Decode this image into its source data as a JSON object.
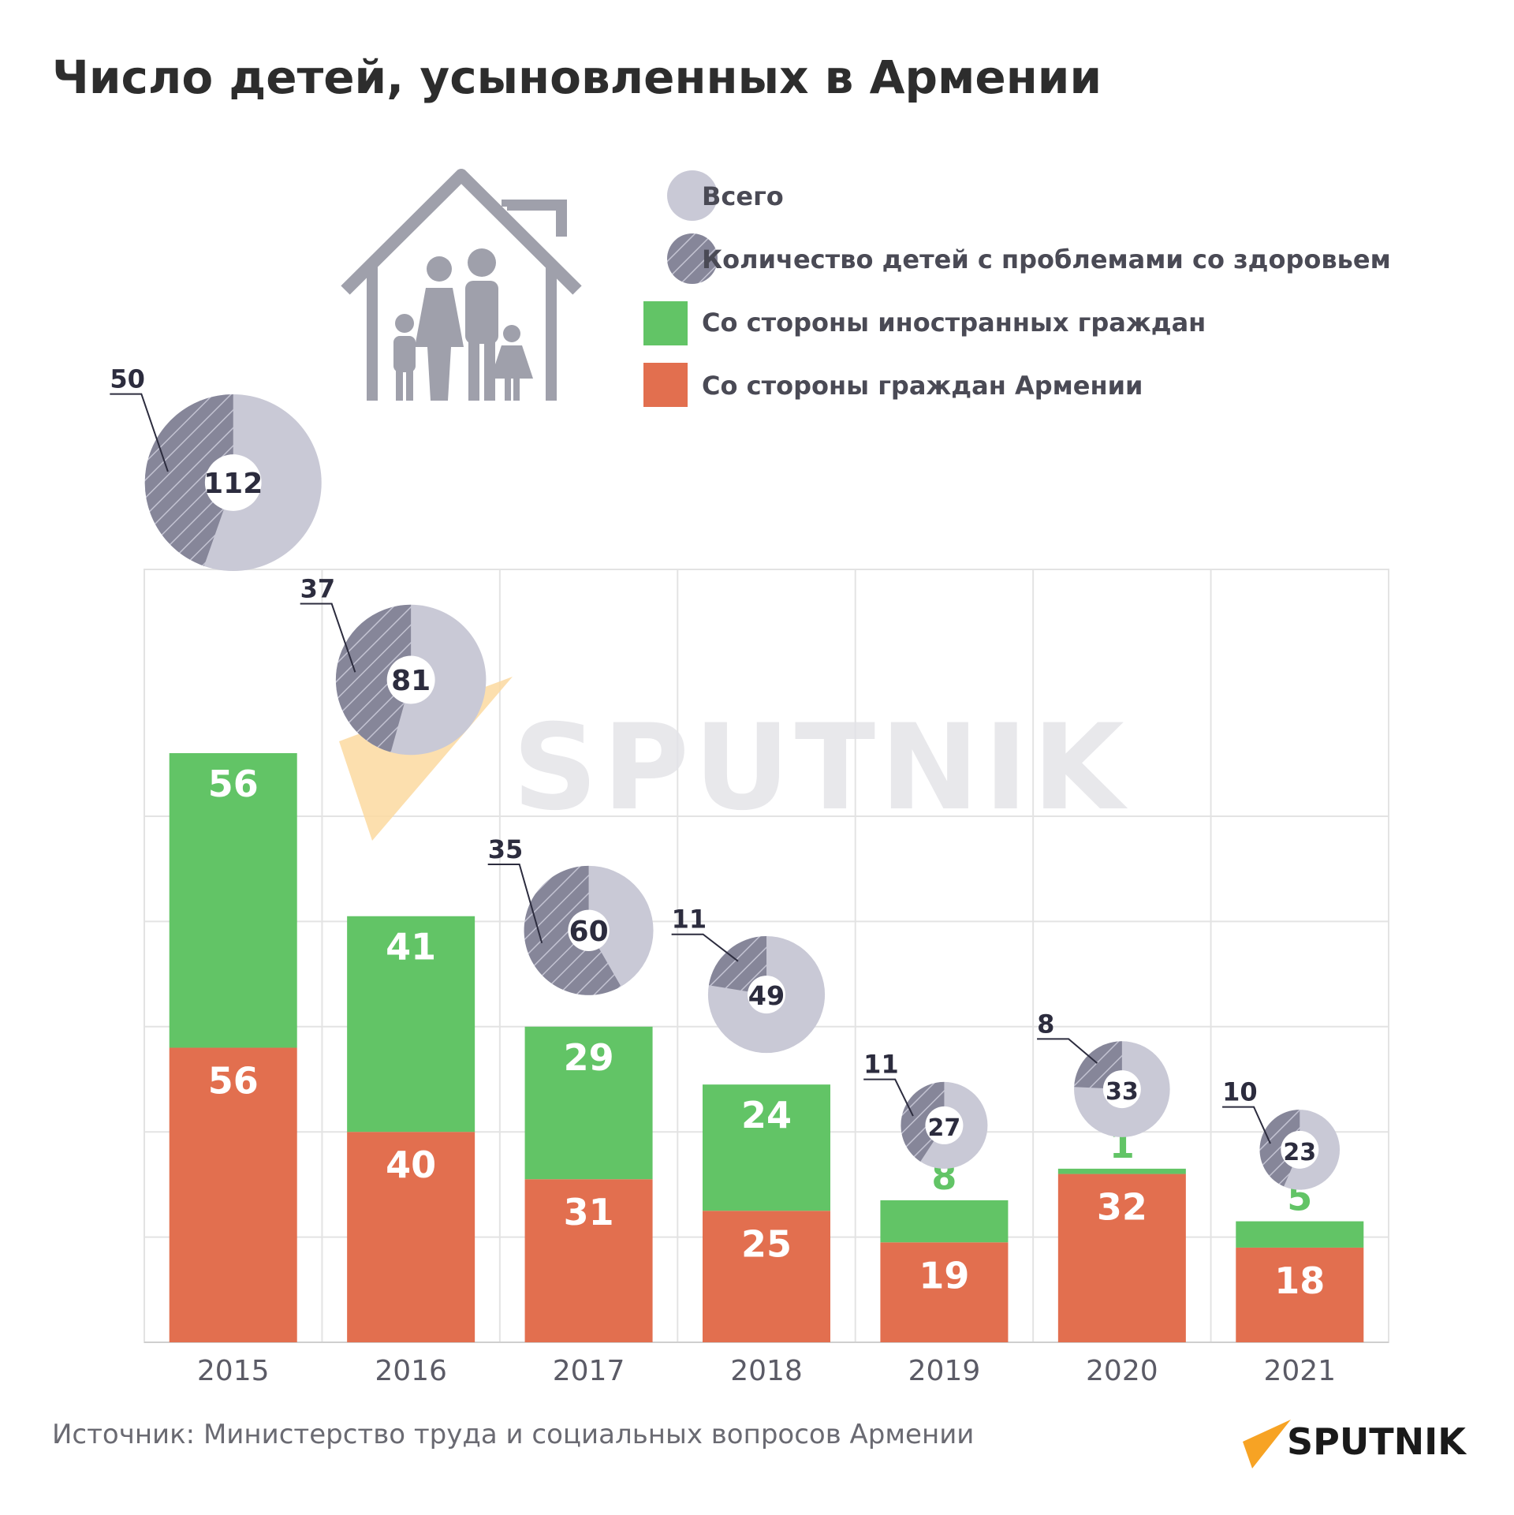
{
  "title": "Число детей, усыновленных в Армении",
  "source": "Источник: Министерство труда и социальных вопросов Армении",
  "brand": "SPUTNIK",
  "legend": [
    {
      "label": "Всего",
      "icon": "light-circle",
      "color": "#c9c9d6"
    },
    {
      "label": "Количество детей с проблемами со здоровьем",
      "icon": "hatched-circle",
      "color": "#868699"
    },
    {
      "label": "Со стороны иностранных граждан",
      "icon": "green-square",
      "color": "#62c466"
    },
    {
      "label": "Со стороны граждан Армении",
      "icon": "orange-square",
      "color": "#e26f4f"
    }
  ],
  "colors": {
    "foreign": "#62c466",
    "armenian": "#e26f4f",
    "total": "#c9c9d6",
    "health": "#868699",
    "grid": "#e3e3e3",
    "accent": "#f7a324"
  },
  "chart_data": {
    "type": "bar",
    "stacked": true,
    "title": "Число детей, усыновленных в Армении",
    "categories": [
      "2015",
      "2016",
      "2017",
      "2018",
      "2019",
      "2020",
      "2021"
    ],
    "series": [
      {
        "name": "Со стороны граждан Армении",
        "values": [
          56,
          40,
          31,
          25,
          19,
          32,
          18
        ]
      },
      {
        "name": "Со стороны иностранных граждан",
        "values": [
          56,
          41,
          29,
          24,
          8,
          1,
          5
        ]
      }
    ],
    "donuts": {
      "total": [
        112,
        81,
        60,
        49,
        27,
        33,
        23
      ],
      "health_problems": [
        50,
        37,
        35,
        11,
        11,
        8,
        10
      ]
    },
    "ylim": [
      0,
      120
    ],
    "grid": true,
    "legend_position": "top-right"
  }
}
